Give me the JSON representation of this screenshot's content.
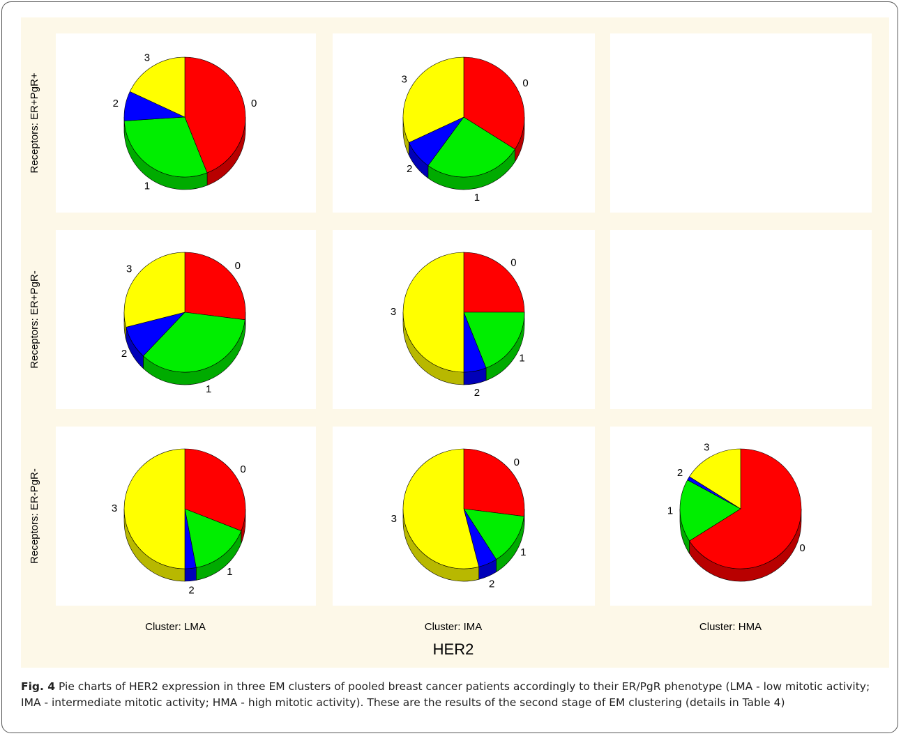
{
  "row_labels": [
    "Receptors: ER+PgR+",
    "Receptors: ER+PgR-",
    "Receptors: ER-PgR-"
  ],
  "column_labels": [
    "Cluster: LMA",
    "Cluster: IMA",
    "Cluster: HMA"
  ],
  "axis_title": "HER2",
  "caption": {
    "label": "Fig. 4",
    "text": "Pie charts of HER2 expression in three EM clusters of pooled breast cancer patients accordingly to their ER/PgR phenotype (LMA - low mitotic activity; IMA - intermediate mitotic activity; HMA - high mitotic activity). These are the results of the second stage of EM clustering (details in Table 4)"
  },
  "chart_data": [
    {
      "type": "pie",
      "categories": [
        "0",
        "1",
        "2",
        "3"
      ],
      "values": [
        44,
        30,
        8,
        18
      ],
      "colors": [
        "#ff0000",
        "#00ee00",
        "#0000ff",
        "#ffff00"
      ]
    },
    {
      "type": "pie",
      "categories": [
        "0",
        "1",
        "2",
        "3"
      ],
      "values": [
        34,
        26,
        8,
        32
      ],
      "colors": [
        "#ff0000",
        "#00ee00",
        "#0000ff",
        "#ffff00"
      ]
    },
    {
      "type": "pie",
      "categories": [
        "0",
        "1",
        "2",
        "3"
      ],
      "values": [
        27,
        35,
        9,
        29
      ],
      "colors": [
        "#ff0000",
        "#00ee00",
        "#0000ff",
        "#ffff00"
      ]
    },
    {
      "type": "pie",
      "categories": [
        "0",
        "1",
        "2",
        "3"
      ],
      "values": [
        25,
        19,
        6,
        50
      ],
      "colors": [
        "#ff0000",
        "#00ee00",
        "#0000ff",
        "#ffff00"
      ]
    },
    {
      "type": "pie",
      "categories": [
        "0",
        "1",
        "2",
        "3"
      ],
      "values": [
        31,
        16,
        3,
        50
      ],
      "colors": [
        "#ff0000",
        "#00ee00",
        "#0000ff",
        "#ffff00"
      ]
    },
    {
      "type": "pie",
      "categories": [
        "0",
        "1",
        "2",
        "3"
      ],
      "values": [
        27,
        14,
        5,
        54
      ],
      "colors": [
        "#ff0000",
        "#00ee00",
        "#0000ff",
        "#ffff00"
      ]
    },
    {
      "type": "pie",
      "categories": [
        "0",
        "1",
        "2",
        "3"
      ],
      "values": [
        66,
        17,
        1,
        16
      ],
      "colors": [
        "#ff0000",
        "#00ee00",
        "#0000ff",
        "#ffff00"
      ]
    }
  ]
}
